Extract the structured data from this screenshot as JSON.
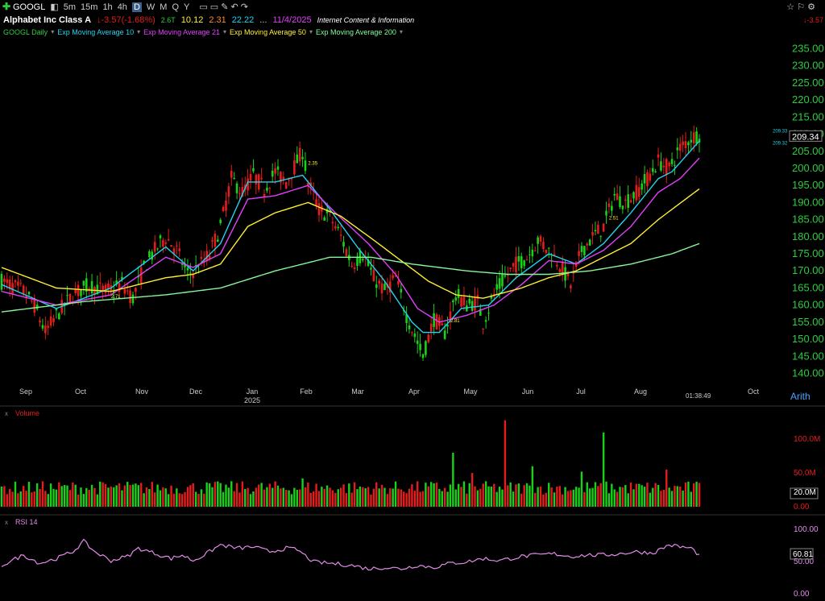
{
  "toolbar": {
    "symbol": "GOOGL",
    "intervals": [
      "5m",
      "15m",
      "1h",
      "4h",
      "D",
      "W",
      "M",
      "Q",
      "Y"
    ],
    "active_interval": "D"
  },
  "header": {
    "name": "Alphabet Inc Class A",
    "change": "-3.57",
    "change_pct": "(-1.68%)",
    "mcap": "2.6T",
    "v1": "10.12",
    "v2": "2.31",
    "v3": "22.22",
    "ellipsis": "...",
    "date": "11/4/2025",
    "industry": "Internet Content & Information",
    "right_change": "-3.57"
  },
  "legend": [
    {
      "label": "GOOGL Daily",
      "color": "#2ecc40"
    },
    {
      "label": "Exp Moving Average 10",
      "color": "#22d3ee"
    },
    {
      "label": "Exp Moving Average 21",
      "color": "#e040fb"
    },
    {
      "label": "Exp Moving Average 50",
      "color": "#ffee33"
    },
    {
      "label": "Exp Moving Average 200",
      "color": "#7dff9a"
    }
  ],
  "colors": {
    "up": "#19d119",
    "down": "#e51c1c",
    "ema10": "#22d3ee",
    "ema21": "#e040fb",
    "ema50": "#ffee33",
    "ema200": "#86f59b",
    "axis": "#2ecc40",
    "rsi": "#e38be8"
  },
  "chart_data": [
    {
      "type": "candlestick",
      "title": "GOOGL Daily",
      "y_ticks": [
        "235.00",
        "230.00",
        "225.00",
        "220.00",
        "215.00",
        "210.00",
        "205.00",
        "200.00",
        "195.00",
        "190.00",
        "185.00",
        "180.00",
        "175.00",
        "170.00",
        "165.00",
        "160.00",
        "155.00",
        "150.00",
        "145.00",
        "140.00"
      ],
      "ylim": [
        138,
        237
      ],
      "x_ticks": [
        "Sep",
        "Oct",
        "Nov",
        "Dec",
        "Jan",
        "Feb",
        "Mar",
        "Apr",
        "May",
        "Jun",
        "Jul",
        "Aug",
        "Oct"
      ],
      "year_label": "2025",
      "scale": "Arith",
      "last_price": "209.34",
      "ema_labels": [
        "209.33",
        "209.32"
      ],
      "time_label": "01:38:49",
      "annotations": [
        "2.71",
        "2.35",
        "2.81",
        "2.51"
      ],
      "anchors": [
        [
          0,
          167
        ],
        [
          8,
          164
        ],
        [
          12,
          160
        ],
        [
          16,
          152
        ],
        [
          20,
          157
        ],
        [
          26,
          163
        ],
        [
          32,
          166
        ],
        [
          38,
          164
        ],
        [
          44,
          166
        ],
        [
          48,
          162
        ],
        [
          52,
          171
        ],
        [
          56,
          176
        ],
        [
          60,
          180
        ],
        [
          64,
          176
        ],
        [
          68,
          169
        ],
        [
          72,
          171
        ],
        [
          76,
          175
        ],
        [
          80,
          183
        ],
        [
          84,
          197
        ],
        [
          88,
          193
        ],
        [
          92,
          198
        ],
        [
          96,
          194
        ],
        [
          100,
          199
        ],
        [
          104,
          196
        ],
        [
          108,
          202
        ],
        [
          110,
          205
        ],
        [
          112,
          196
        ],
        [
          116,
          188
        ],
        [
          120,
          186
        ],
        [
          124,
          180
        ],
        [
          128,
          172
        ],
        [
          132,
          175
        ],
        [
          136,
          168
        ],
        [
          140,
          164
        ],
        [
          144,
          168
        ],
        [
          148,
          157
        ],
        [
          152,
          149
        ],
        [
          154,
          145
        ],
        [
          158,
          156
        ],
        [
          162,
          152
        ],
        [
          166,
          163
        ],
        [
          170,
          160
        ],
        [
          174,
          161
        ],
        [
          176,
          155
        ],
        [
          180,
          163
        ],
        [
          184,
          168
        ],
        [
          188,
          172
        ],
        [
          192,
          174
        ],
        [
          196,
          179
        ],
        [
          200,
          176
        ],
        [
          204,
          172
        ],
        [
          208,
          166
        ],
        [
          212,
          176
        ],
        [
          216,
          180
        ],
        [
          220,
          183
        ],
        [
          224,
          192
        ],
        [
          228,
          190
        ],
        [
          232,
          193
        ],
        [
          236,
          197
        ],
        [
          240,
          202
        ],
        [
          244,
          200
        ],
        [
          248,
          206
        ],
        [
          252,
          209
        ],
        [
          255,
          210
        ]
      ],
      "ema10": [
        [
          0,
          166
        ],
        [
          20,
          159
        ],
        [
          40,
          165
        ],
        [
          60,
          177
        ],
        [
          70,
          170
        ],
        [
          80,
          178
        ],
        [
          90,
          196
        ],
        [
          100,
          196
        ],
        [
          110,
          198
        ],
        [
          120,
          188
        ],
        [
          130,
          177
        ],
        [
          140,
          167
        ],
        [
          150,
          155
        ],
        [
          154,
          152
        ],
        [
          160,
          152
        ],
        [
          168,
          159
        ],
        [
          178,
          160
        ],
        [
          188,
          168
        ],
        [
          200,
          175
        ],
        [
          210,
          172
        ],
        [
          220,
          178
        ],
        [
          230,
          187
        ],
        [
          240,
          197
        ],
        [
          245,
          199
        ],
        [
          255,
          208
        ]
      ],
      "ema21": [
        [
          0,
          164
        ],
        [
          20,
          160
        ],
        [
          40,
          163
        ],
        [
          60,
          174
        ],
        [
          70,
          171
        ],
        [
          80,
          175
        ],
        [
          90,
          191
        ],
        [
          100,
          192
        ],
        [
          112,
          195
        ],
        [
          122,
          187
        ],
        [
          134,
          178
        ],
        [
          144,
          169
        ],
        [
          152,
          159
        ],
        [
          160,
          155
        ],
        [
          170,
          157
        ],
        [
          180,
          160
        ],
        [
          190,
          166
        ],
        [
          200,
          173
        ],
        [
          210,
          172
        ],
        [
          220,
          176
        ],
        [
          230,
          183
        ],
        [
          240,
          193
        ],
        [
          248,
          197
        ],
        [
          255,
          203
        ]
      ],
      "ema50": [
        [
          0,
          171
        ],
        [
          20,
          165
        ],
        [
          40,
          164
        ],
        [
          60,
          168
        ],
        [
          70,
          169
        ],
        [
          80,
          172
        ],
        [
          90,
          183
        ],
        [
          100,
          187
        ],
        [
          112,
          190
        ],
        [
          124,
          186
        ],
        [
          136,
          179
        ],
        [
          146,
          173
        ],
        [
          156,
          167
        ],
        [
          166,
          163
        ],
        [
          176,
          162
        ],
        [
          190,
          165
        ],
        [
          200,
          168
        ],
        [
          210,
          170
        ],
        [
          220,
          174
        ],
        [
          230,
          178
        ],
        [
          240,
          185
        ],
        [
          255,
          194
        ]
      ],
      "ema200": [
        [
          0,
          158
        ],
        [
          30,
          161
        ],
        [
          60,
          163
        ],
        [
          80,
          165
        ],
        [
          100,
          170
        ],
        [
          110,
          172
        ],
        [
          120,
          174
        ],
        [
          135,
          174
        ],
        [
          150,
          172
        ],
        [
          170,
          170
        ],
        [
          185,
          169
        ],
        [
          200,
          169
        ],
        [
          215,
          170
        ],
        [
          230,
          172
        ],
        [
          245,
          175
        ],
        [
          255,
          178
        ]
      ]
    },
    {
      "type": "bar",
      "title": "Volume",
      "y_ticks": [
        "100.0M",
        "50.0M",
        "20.0M",
        "0.00"
      ],
      "current": "20.0M",
      "ylim": [
        0,
        130
      ],
      "spikes": [
        [
          110,
          42
        ],
        [
          165,
          80
        ],
        [
          172,
          50
        ],
        [
          184,
          128
        ],
        [
          194,
          60
        ],
        [
          212,
          52
        ],
        [
          220,
          110
        ],
        [
          243,
          55
        ]
      ]
    },
    {
      "type": "line",
      "title": "RSI 14",
      "y_ticks": [
        "100.00",
        "50.00",
        "0.00"
      ],
      "current": "60.81",
      "ylim": [
        0,
        100
      ],
      "anchors": [
        [
          0,
          45
        ],
        [
          8,
          60
        ],
        [
          14,
          48
        ],
        [
          20,
          55
        ],
        [
          26,
          65
        ],
        [
          30,
          80
        ],
        [
          34,
          65
        ],
        [
          40,
          52
        ],
        [
          46,
          58
        ],
        [
          50,
          70
        ],
        [
          54,
          65
        ],
        [
          58,
          60
        ],
        [
          62,
          55
        ],
        [
          66,
          60
        ],
        [
          70,
          52
        ],
        [
          74,
          60
        ],
        [
          80,
          75
        ],
        [
          86,
          70
        ],
        [
          92,
          72
        ],
        [
          98,
          65
        ],
        [
          104,
          70
        ],
        [
          108,
          68
        ],
        [
          114,
          50
        ],
        [
          120,
          48
        ],
        [
          128,
          45
        ],
        [
          134,
          40
        ],
        [
          140,
          42
        ],
        [
          146,
          40
        ],
        [
          152,
          45
        ],
        [
          158,
          42
        ],
        [
          164,
          48
        ],
        [
          170,
          50
        ],
        [
          176,
          55
        ],
        [
          182,
          52
        ],
        [
          190,
          58
        ],
        [
          196,
          60
        ],
        [
          202,
          62
        ],
        [
          208,
          58
        ],
        [
          214,
          60
        ],
        [
          220,
          60
        ],
        [
          226,
          62
        ],
        [
          232,
          65
        ],
        [
          238,
          63
        ],
        [
          244,
          75
        ],
        [
          248,
          72
        ],
        [
          252,
          70
        ],
        [
          255,
          60
        ]
      ]
    }
  ]
}
